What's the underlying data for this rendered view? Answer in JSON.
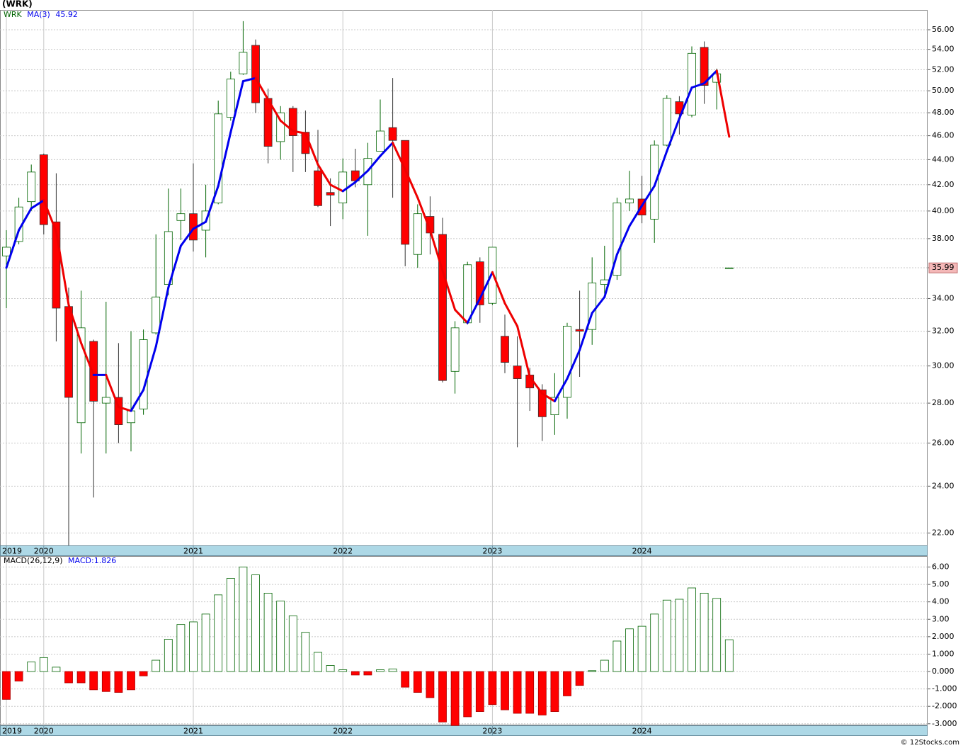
{
  "title": "(WRK)",
  "footer": "© 12Stocks.com",
  "chart_data": [
    {
      "type": "candlestick",
      "ticker": "WRK",
      "log_scale": true,
      "grid": true,
      "up_color": "#006400",
      "down_color": "#ff0000",
      "categories": [
        "2019",
        null,
        null,
        "2020",
        null,
        null,
        null,
        null,
        null,
        null,
        null,
        null,
        null,
        null,
        null,
        "2021",
        null,
        null,
        null,
        null,
        null,
        null,
        null,
        null,
        null,
        null,
        null,
        "2022",
        null,
        null,
        null,
        null,
        null,
        null,
        null,
        null,
        null,
        null,
        null,
        "2023",
        null,
        null,
        null,
        null,
        null,
        null,
        null,
        null,
        null,
        null,
        null,
        "2024",
        null,
        null,
        null,
        null,
        null,
        null,
        null
      ],
      "open": [
        36.8,
        37.8,
        40.7,
        44.4,
        39.2,
        33.5,
        27.0,
        31.4,
        28.0,
        28.3,
        27.0,
        27.7,
        31.9,
        34.9,
        39.3,
        39.8,
        38.6,
        40.6,
        47.6,
        51.6,
        54.4,
        49.3,
        45.5,
        48.4,
        46.3,
        43.1,
        41.4,
        40.6,
        43.1,
        42.0,
        44.7,
        46.7,
        45.6,
        36.9,
        39.6,
        38.3,
        29.7,
        32.5,
        36.4,
        33.7,
        31.7,
        30.0,
        29.5,
        28.7,
        27.4,
        28.3,
        32.1,
        32.1,
        34.9,
        35.5,
        40.6,
        40.9,
        39.4,
        45.2,
        49.0,
        47.8,
        54.2,
        50.8,
        35.99
      ],
      "high": [
        38.6,
        41.0,
        43.6,
        44.5,
        42.9,
        34.7,
        34.5,
        31.5,
        33.8,
        31.3,
        32.0,
        32.1,
        38.3,
        41.7,
        41.7,
        43.7,
        42.0,
        49.1,
        51.8,
        56.9,
        55.0,
        50.2,
        48.6,
        48.6,
        48.2,
        46.5,
        42.5,
        44.1,
        44.9,
        45.4,
        49.2,
        51.2,
        45.6,
        40.5,
        41.1,
        39.5,
        32.6,
        36.4,
        36.7,
        37.4,
        33.0,
        31.7,
        29.9,
        29.0,
        29.6,
        32.5,
        34.5,
        36.7,
        37.5,
        41.0,
        43.1,
        42.7,
        45.6,
        49.6,
        49.5,
        54.3,
        54.8,
        52.1,
        35.99
      ],
      "low": [
        33.4,
        37.6,
        40.0,
        38.3,
        31.4,
        21.5,
        25.5,
        23.5,
        25.5,
        26.0,
        25.6,
        27.4,
        31.8,
        34.2,
        37.9,
        37.1,
        36.7,
        40.5,
        47.3,
        51.5,
        48.0,
        43.7,
        44.0,
        43.0,
        43.0,
        40.3,
        38.9,
        39.4,
        41.8,
        38.2,
        44.8,
        41.0,
        36.1,
        36.0,
        36.9,
        29.1,
        28.5,
        32.4,
        32.5,
        33.6,
        29.6,
        25.8,
        27.6,
        26.1,
        26.4,
        27.2,
        29.4,
        31.2,
        34.3,
        35.2,
        40.0,
        39.1,
        37.7,
        45.1,
        46.1,
        47.6,
        48.8,
        48.3,
        35.99
      ],
      "close": [
        37.4,
        40.3,
        43.0,
        39.0,
        33.4,
        28.3,
        32.2,
        28.1,
        28.3,
        26.9,
        27.6,
        31.5,
        34.1,
        38.5,
        39.8,
        37.9,
        40.0,
        47.9,
        51.1,
        53.7,
        48.9,
        45.1,
        48.0,
        46.0,
        44.5,
        40.4,
        41.2,
        43.0,
        42.3,
        44.1,
        46.4,
        45.6,
        37.6,
        39.8,
        38.4,
        29.2,
        32.2,
        36.2,
        33.6,
        37.4,
        30.2,
        29.3,
        28.8,
        27.3,
        28.3,
        32.3,
        32.0,
        35.0,
        35.2,
        40.6,
        40.9,
        39.7,
        45.2,
        49.3,
        47.9,
        53.6,
        50.5,
        51.6,
        35.99
      ],
      "series": [
        {
          "name": "MA(3)",
          "color": "#0000ee",
          "down_color": "#ee0000",
          "values": [
            36.0,
            38.6,
            40.2,
            40.8,
            38.5,
            33.6,
            31.3,
            29.5,
            29.5,
            27.8,
            27.6,
            28.7,
            31.1,
            34.7,
            37.5,
            38.7,
            39.2,
            41.9,
            46.3,
            50.9,
            51.2,
            49.2,
            47.3,
            46.4,
            46.2,
            43.6,
            42.0,
            41.5,
            42.2,
            43.1,
            44.3,
            45.4,
            43.2,
            41.0,
            38.6,
            35.8,
            33.3,
            32.5,
            34.0,
            35.7,
            33.7,
            32.3,
            29.4,
            28.5,
            28.1,
            29.3,
            30.9,
            33.1,
            34.1,
            36.9,
            38.9,
            40.4,
            41.9,
            44.7,
            47.5,
            50.3,
            50.7,
            51.9,
            45.92
          ]
        }
      ],
      "ylim": [
        21.5,
        58.1
      ],
      "yticks": [
        {
          "value": 22,
          "label": "22.00"
        },
        {
          "value": 24,
          "label": "24.00"
        },
        {
          "value": 26,
          "label": "26.00"
        },
        {
          "value": 28,
          "label": "28.00"
        },
        {
          "value": 30,
          "label": "30.00"
        },
        {
          "value": 32,
          "label": "32.00"
        },
        {
          "value": 34,
          "label": "34.00"
        },
        {
          "value": 36,
          "label": "36.00"
        },
        {
          "value": 38,
          "label": "38.00"
        },
        {
          "value": 40,
          "label": "40.00"
        },
        {
          "value": 42,
          "label": "42.00"
        },
        {
          "value": 44,
          "label": "44.00"
        },
        {
          "value": 46,
          "label": "46.00"
        },
        {
          "value": 48,
          "label": "48.00"
        },
        {
          "value": 50,
          "label": "50.00"
        },
        {
          "value": 52,
          "label": "52.00"
        },
        {
          "value": 54,
          "label": "54.00"
        },
        {
          "value": 56,
          "label": "56.00"
        }
      ]
    },
    {
      "type": "bar",
      "title": "MACD(26,12,9)",
      "value_prefix": "MACD:",
      "grid": true,
      "up_color": "#006400",
      "down_color": "#ff0000",
      "categories": [
        "2019",
        null,
        null,
        "2020",
        null,
        null,
        null,
        null,
        null,
        null,
        null,
        null,
        null,
        null,
        null,
        "2021",
        null,
        null,
        null,
        null,
        null,
        null,
        null,
        null,
        null,
        null,
        null,
        "2022",
        null,
        null,
        null,
        null,
        null,
        null,
        null,
        null,
        null,
        null,
        null,
        "2023",
        null,
        null,
        null,
        null,
        null,
        null,
        null,
        null,
        null,
        null,
        null,
        "2024",
        null,
        null,
        null,
        null,
        null,
        null,
        null
      ],
      "values": [
        -1.6,
        -0.55,
        0.55,
        0.8,
        0.25,
        -0.65,
        -0.65,
        -1.05,
        -1.15,
        -1.2,
        -1.05,
        -0.25,
        0.65,
        1.85,
        2.7,
        2.85,
        3.3,
        4.4,
        5.35,
        6.0,
        5.55,
        4.5,
        4.05,
        3.2,
        2.25,
        1.1,
        0.35,
        0.1,
        -0.2,
        -0.2,
        0.1,
        0.15,
        -0.9,
        -1.2,
        -1.5,
        -2.9,
        -3.1,
        -2.6,
        -2.3,
        -1.9,
        -2.2,
        -2.4,
        -2.4,
        -2.5,
        -2.3,
        -1.4,
        -0.8,
        0.05,
        0.65,
        1.75,
        2.45,
        2.6,
        3.3,
        4.1,
        4.15,
        4.8,
        4.5,
        4.2,
        1.826
      ],
      "ylim": [
        -3.09,
        6.59
      ],
      "yticks": [
        {
          "value": -3,
          "label": "-3.000"
        },
        {
          "value": -2,
          "label": "-2.000"
        },
        {
          "value": -1,
          "label": "-1.000"
        },
        {
          "value": 0,
          "label": "0.000"
        },
        {
          "value": 1,
          "label": "1.000"
        },
        {
          "value": 2,
          "label": "2.000"
        },
        {
          "value": 3,
          "label": "3.00"
        },
        {
          "value": 4,
          "label": "4.00"
        },
        {
          "value": 5,
          "label": "5.00"
        },
        {
          "value": 6,
          "label": "6.00"
        }
      ]
    }
  ]
}
